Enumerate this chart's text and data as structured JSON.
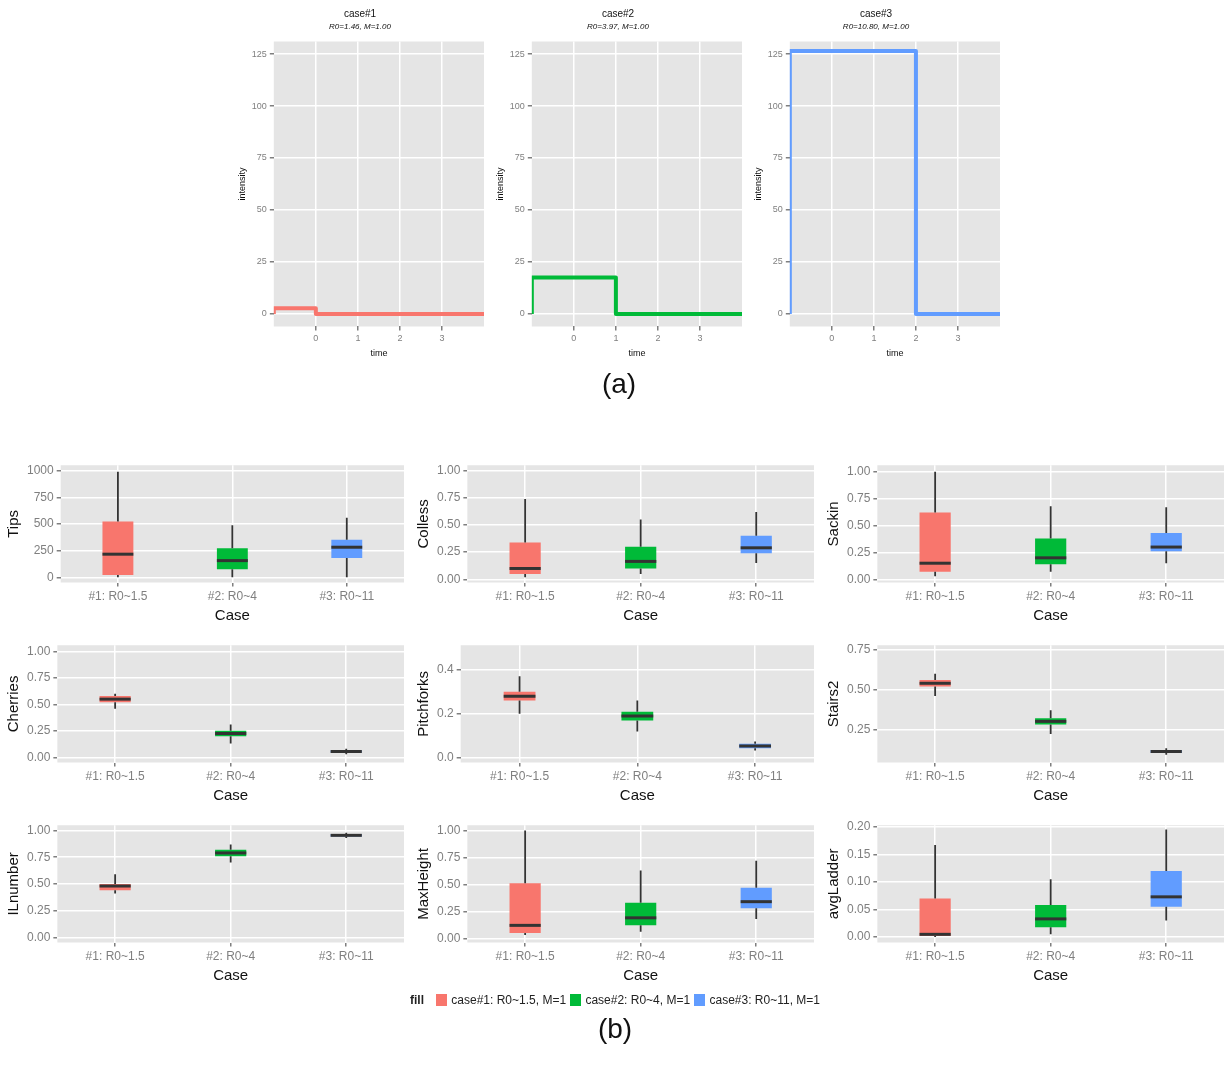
{
  "chart_data": [
    {
      "type": "step",
      "title": "case#1",
      "subtitle": "R0=1.46, M=1.00",
      "xlabel": "time",
      "ylabel": "intensity",
      "x": [
        -1,
        0,
        1,
        4
      ],
      "series": [
        {
          "color": "#f8766d",
          "values": [
            0,
            2.7,
            0,
            0
          ]
        }
      ],
      "xlim": [
        -1,
        4
      ],
      "xticks": [
        0,
        1,
        2,
        3
      ],
      "ylim": [
        -6,
        131
      ],
      "yticks": [
        0,
        25,
        50,
        75,
        100,
        125
      ],
      "grid": true
    },
    {
      "type": "step",
      "title": "case#2",
      "subtitle": "R0=3.97, M=1.00",
      "xlabel": "time",
      "ylabel": "intensity",
      "x": [
        -1,
        1,
        2,
        4
      ],
      "series": [
        {
          "color": "#00ba38",
          "values": [
            0,
            17.5,
            0,
            0
          ]
        }
      ],
      "xlim": [
        -1,
        4
      ],
      "xticks": [
        0,
        1,
        2,
        3
      ],
      "ylim": [
        -6,
        131
      ],
      "yticks": [
        0,
        25,
        50,
        75,
        100,
        125
      ],
      "grid": true,
      "annotations": [
        "(a)"
      ]
    },
    {
      "type": "step",
      "title": "case#3",
      "subtitle": "R0=10.80, M=1.00",
      "xlabel": "time",
      "ylabel": "intensity",
      "x": [
        -1,
        2,
        3,
        4
      ],
      "series": [
        {
          "color": "#619cff",
          "values": [
            0,
            126.5,
            0,
            0
          ]
        }
      ],
      "xlim": [
        -1,
        4
      ],
      "xticks": [
        0,
        1,
        2,
        3
      ],
      "ylim": [
        -6,
        131
      ],
      "yticks": [
        0,
        25,
        50,
        75,
        100,
        125
      ],
      "grid": true
    },
    {
      "type": "box",
      "xlabel": "Case",
      "ylabel": "Tips",
      "categories": [
        "#1: R0~1.5",
        "#2: R0~4",
        "#3: R0~11"
      ],
      "ylim": [
        -45,
        1050
      ],
      "yticks": [
        0,
        250,
        500,
        750,
        1000
      ],
      "grid": true,
      "series": [
        {
          "color": "#f8766d",
          "boxes": [
            {
              "low": 5,
              "q1": 25,
              "median": 220,
              "q3": 525,
              "high": 990
            },
            null,
            null
          ]
        },
        {
          "color": "#00ba38",
          "boxes": [
            null,
            {
              "low": 5,
              "q1": 80,
              "median": 160,
              "q3": 275,
              "high": 490
            },
            null
          ]
        },
        {
          "color": "#619cff",
          "boxes": [
            null,
            null,
            {
              "low": 5,
              "q1": 185,
              "median": 285,
              "q3": 355,
              "high": 560
            }
          ]
        }
      ]
    },
    {
      "type": "box",
      "xlabel": "Case",
      "ylabel": "Colless",
      "categories": [
        "#1: R0~1.5",
        "#2: R0~4",
        "#3: R0~11"
      ],
      "ylim": [
        -0.03,
        1.05
      ],
      "yticks": [
        {
          "value": 0,
          "label": "0.00"
        },
        0.25,
        {
          "value": 0.5,
          "label": "0.50"
        },
        0.75,
        {
          "value": 1,
          "label": "1.00"
        }
      ],
      "grid": true,
      "series": [
        {
          "color": "#f8766d",
          "boxes": [
            {
              "low": 0.02,
              "q1": 0.05,
              "median": 0.1,
              "q3": 0.34,
              "high": 0.74
            },
            null,
            null
          ]
        },
        {
          "color": "#00ba38",
          "boxes": [
            null,
            {
              "low": 0.05,
              "q1": 0.1,
              "median": 0.165,
              "q3": 0.3,
              "high": 0.55
            },
            null
          ]
        },
        {
          "color": "#619cff",
          "boxes": [
            null,
            null,
            {
              "low": 0.15,
              "q1": 0.24,
              "median": 0.29,
              "q3": 0.4,
              "high": 0.62
            }
          ]
        }
      ]
    },
    {
      "type": "box",
      "xlabel": "Case",
      "ylabel": "Sackin",
      "categories": [
        "#1: R0~1.5",
        "#2: R0~4",
        "#3: R0~11"
      ],
      "ylim": [
        -0.03,
        1.06
      ],
      "yticks": [
        {
          "value": 0,
          "label": "0.00"
        },
        0.25,
        {
          "value": 0.5,
          "label": "0.50"
        },
        0.75,
        {
          "value": 1,
          "label": "1.00"
        }
      ],
      "grid": true,
      "series": [
        {
          "color": "#f8766d",
          "boxes": [
            {
              "low": 0.03,
              "q1": 0.07,
              "median": 0.15,
              "q3": 0.62,
              "high": 1
            },
            null,
            null
          ]
        },
        {
          "color": "#00ba38",
          "boxes": [
            null,
            {
              "low": 0.07,
              "q1": 0.14,
              "median": 0.2,
              "q3": 0.38,
              "high": 0.68
            },
            null
          ]
        },
        {
          "color": "#619cff",
          "boxes": [
            null,
            null,
            {
              "low": 0.15,
              "q1": 0.26,
              "median": 0.3,
              "q3": 0.43,
              "high": 0.67
            }
          ]
        }
      ]
    },
    {
      "type": "box",
      "xlabel": "Case",
      "ylabel": "Cherries",
      "categories": [
        "#1: R0~1.5",
        "#2: R0~4",
        "#3: R0~11"
      ],
      "ylim": [
        -0.05,
        1.06
      ],
      "yticks": [
        {
          "value": 0,
          "label": "0.00"
        },
        0.25,
        {
          "value": 0.5,
          "label": "0.50"
        },
        0.75,
        {
          "value": 1,
          "label": "1.00"
        }
      ],
      "grid": true,
      "series": [
        {
          "color": "#f8766d",
          "boxes": [
            {
              "low": 0.46,
              "q1": 0.52,
              "median": 0.55,
              "q3": 0.58,
              "high": 0.6
            },
            null,
            null
          ]
        },
        {
          "color": "#00ba38",
          "boxes": [
            null,
            {
              "low": 0.13,
              "q1": 0.2,
              "median": 0.225,
              "q3": 0.25,
              "high": 0.31
            },
            null
          ]
        },
        {
          "color": "#619cff",
          "boxes": [
            null,
            null,
            {
              "low": 0.03,
              "q1": 0.045,
              "median": 0.055,
              "q3": 0.065,
              "high": 0.08
            }
          ]
        }
      ]
    },
    {
      "type": "box",
      "xlabel": "Case",
      "ylabel": "Pitchforks",
      "categories": [
        "#1: R0~1.5",
        "#2: R0~4",
        "#3: R0~11"
      ],
      "ylim": [
        -0.02,
        0.51
      ],
      "yticks": [
        {
          "value": 0,
          "label": "0.0"
        },
        0.2,
        0.4
      ],
      "grid": true,
      "series": [
        {
          "color": "#f8766d",
          "boxes": [
            {
              "low": 0.2,
              "q1": 0.26,
              "median": 0.28,
              "q3": 0.3,
              "high": 0.37
            },
            null,
            null
          ]
        },
        {
          "color": "#00ba38",
          "boxes": [
            null,
            {
              "low": 0.12,
              "q1": 0.17,
              "median": 0.19,
              "q3": 0.21,
              "high": 0.26
            },
            null
          ]
        },
        {
          "color": "#619cff",
          "boxes": [
            null,
            null,
            {
              "low": 0.035,
              "q1": 0.045,
              "median": 0.055,
              "q3": 0.065,
              "high": 0.075
            }
          ]
        }
      ]
    },
    {
      "type": "box",
      "xlabel": "Case",
      "ylabel": "Stairs2",
      "categories": [
        "#1: R0~1.5",
        "#2: R0~4",
        "#3: R0~11"
      ],
      "ylim": [
        0.04,
        0.78
      ],
      "yticks": [
        0.25,
        {
          "value": 0.5,
          "label": "0.50"
        },
        0.75
      ],
      "grid": true,
      "series": [
        {
          "color": "#f8766d",
          "boxes": [
            {
              "low": 0.46,
              "q1": 0.52,
              "median": 0.54,
              "q3": 0.56,
              "high": 0.6
            },
            null,
            null
          ]
        },
        {
          "color": "#00ba38",
          "boxes": [
            null,
            {
              "low": 0.22,
              "q1": 0.28,
              "median": 0.3,
              "q3": 0.32,
              "high": 0.37
            },
            null
          ]
        },
        {
          "color": "#619cff",
          "boxes": [
            null,
            null,
            {
              "low": 0.09,
              "q1": 0.1,
              "median": 0.11,
              "q3": 0.12,
              "high": 0.13
            }
          ]
        }
      ]
    },
    {
      "type": "box",
      "xlabel": "Case",
      "ylabel": "ILnumber",
      "categories": [
        "#1: R0~1.5",
        "#2: R0~4",
        "#3: R0~11"
      ],
      "ylim": [
        -0.05,
        1.05
      ],
      "yticks": [
        {
          "value": 0,
          "label": "0.00"
        },
        0.25,
        {
          "value": 0.5,
          "label": "0.50"
        },
        0.75,
        {
          "value": 1,
          "label": "1.00"
        }
      ],
      "grid": true,
      "series": [
        {
          "color": "#f8766d",
          "boxes": [
            {
              "low": 0.41,
              "q1": 0.44,
              "median": 0.48,
              "q3": 0.5,
              "high": 0.59
            },
            null,
            null
          ]
        },
        {
          "color": "#00ba38",
          "boxes": [
            null,
            {
              "low": 0.7,
              "q1": 0.76,
              "median": 0.79,
              "q3": 0.82,
              "high": 0.87
            },
            null
          ]
        },
        {
          "color": "#619cff",
          "boxes": [
            null,
            null,
            {
              "low": 0.93,
              "q1": 0.945,
              "median": 0.955,
              "q3": 0.965,
              "high": 0.98
            }
          ]
        }
      ]
    },
    {
      "type": "box",
      "xlabel": "Case",
      "ylabel": "MaxHeight",
      "categories": [
        "#1: R0~1.5",
        "#2: R0~4",
        "#3: R0~11"
      ],
      "ylim": [
        -0.04,
        1.05
      ],
      "yticks": [
        {
          "value": 0,
          "label": "0.00"
        },
        0.25,
        {
          "value": 0.5,
          "label": "0.50"
        },
        0.75,
        {
          "value": 1,
          "label": "1.00"
        }
      ],
      "grid": true,
      "legend": "bottom",
      "legend_title": "fill",
      "annotations": [
        "(b)"
      ],
      "series": [
        {
          "name": "case#1: R0~1.5, M=1",
          "color": "#f8766d",
          "boxes": [
            {
              "low": 0.03,
              "q1": 0.05,
              "median": 0.12,
              "q3": 0.51,
              "high": 1
            },
            null,
            null
          ]
        },
        {
          "name": "case#2: R0~4, M=1",
          "color": "#00ba38",
          "boxes": [
            null,
            {
              "low": 0.06,
              "q1": 0.12,
              "median": 0.19,
              "q3": 0.33,
              "high": 0.63
            },
            null
          ]
        },
        {
          "name": "case#3: R0~11, M=1",
          "color": "#619cff",
          "boxes": [
            null,
            null,
            {
              "low": 0.18,
              "q1": 0.28,
              "median": 0.34,
              "q3": 0.47,
              "high": 0.72
            }
          ]
        }
      ]
    },
    {
      "type": "box",
      "xlabel": "Case",
      "ylabel": "avgLadder",
      "categories": [
        "#1: R0~1.5",
        "#2: R0~4",
        "#3: R0~11"
      ],
      "ylim": [
        -0.01,
        0.203
      ],
      "yticks": [
        {
          "value": 0,
          "label": "0.00"
        },
        0.05,
        {
          "value": 0.1,
          "label": "0.10"
        },
        0.15,
        {
          "value": 0.2,
          "label": "0.20"
        }
      ],
      "grid": true,
      "series": [
        {
          "color": "#f8766d",
          "boxes": [
            {
              "low": 0,
              "q1": 0.002,
              "median": 0.005,
              "q3": 0.07,
              "high": 0.167
            },
            null,
            null
          ]
        },
        {
          "color": "#00ba38",
          "boxes": [
            null,
            {
              "low": 0.005,
              "q1": 0.018,
              "median": 0.033,
              "q3": 0.058,
              "high": 0.105
            },
            null
          ]
        },
        {
          "color": "#619cff",
          "boxes": [
            null,
            null,
            {
              "low": 0.03,
              "q1": 0.055,
              "median": 0.073,
              "q3": 0.12,
              "high": 0.195
            }
          ]
        }
      ]
    }
  ]
}
